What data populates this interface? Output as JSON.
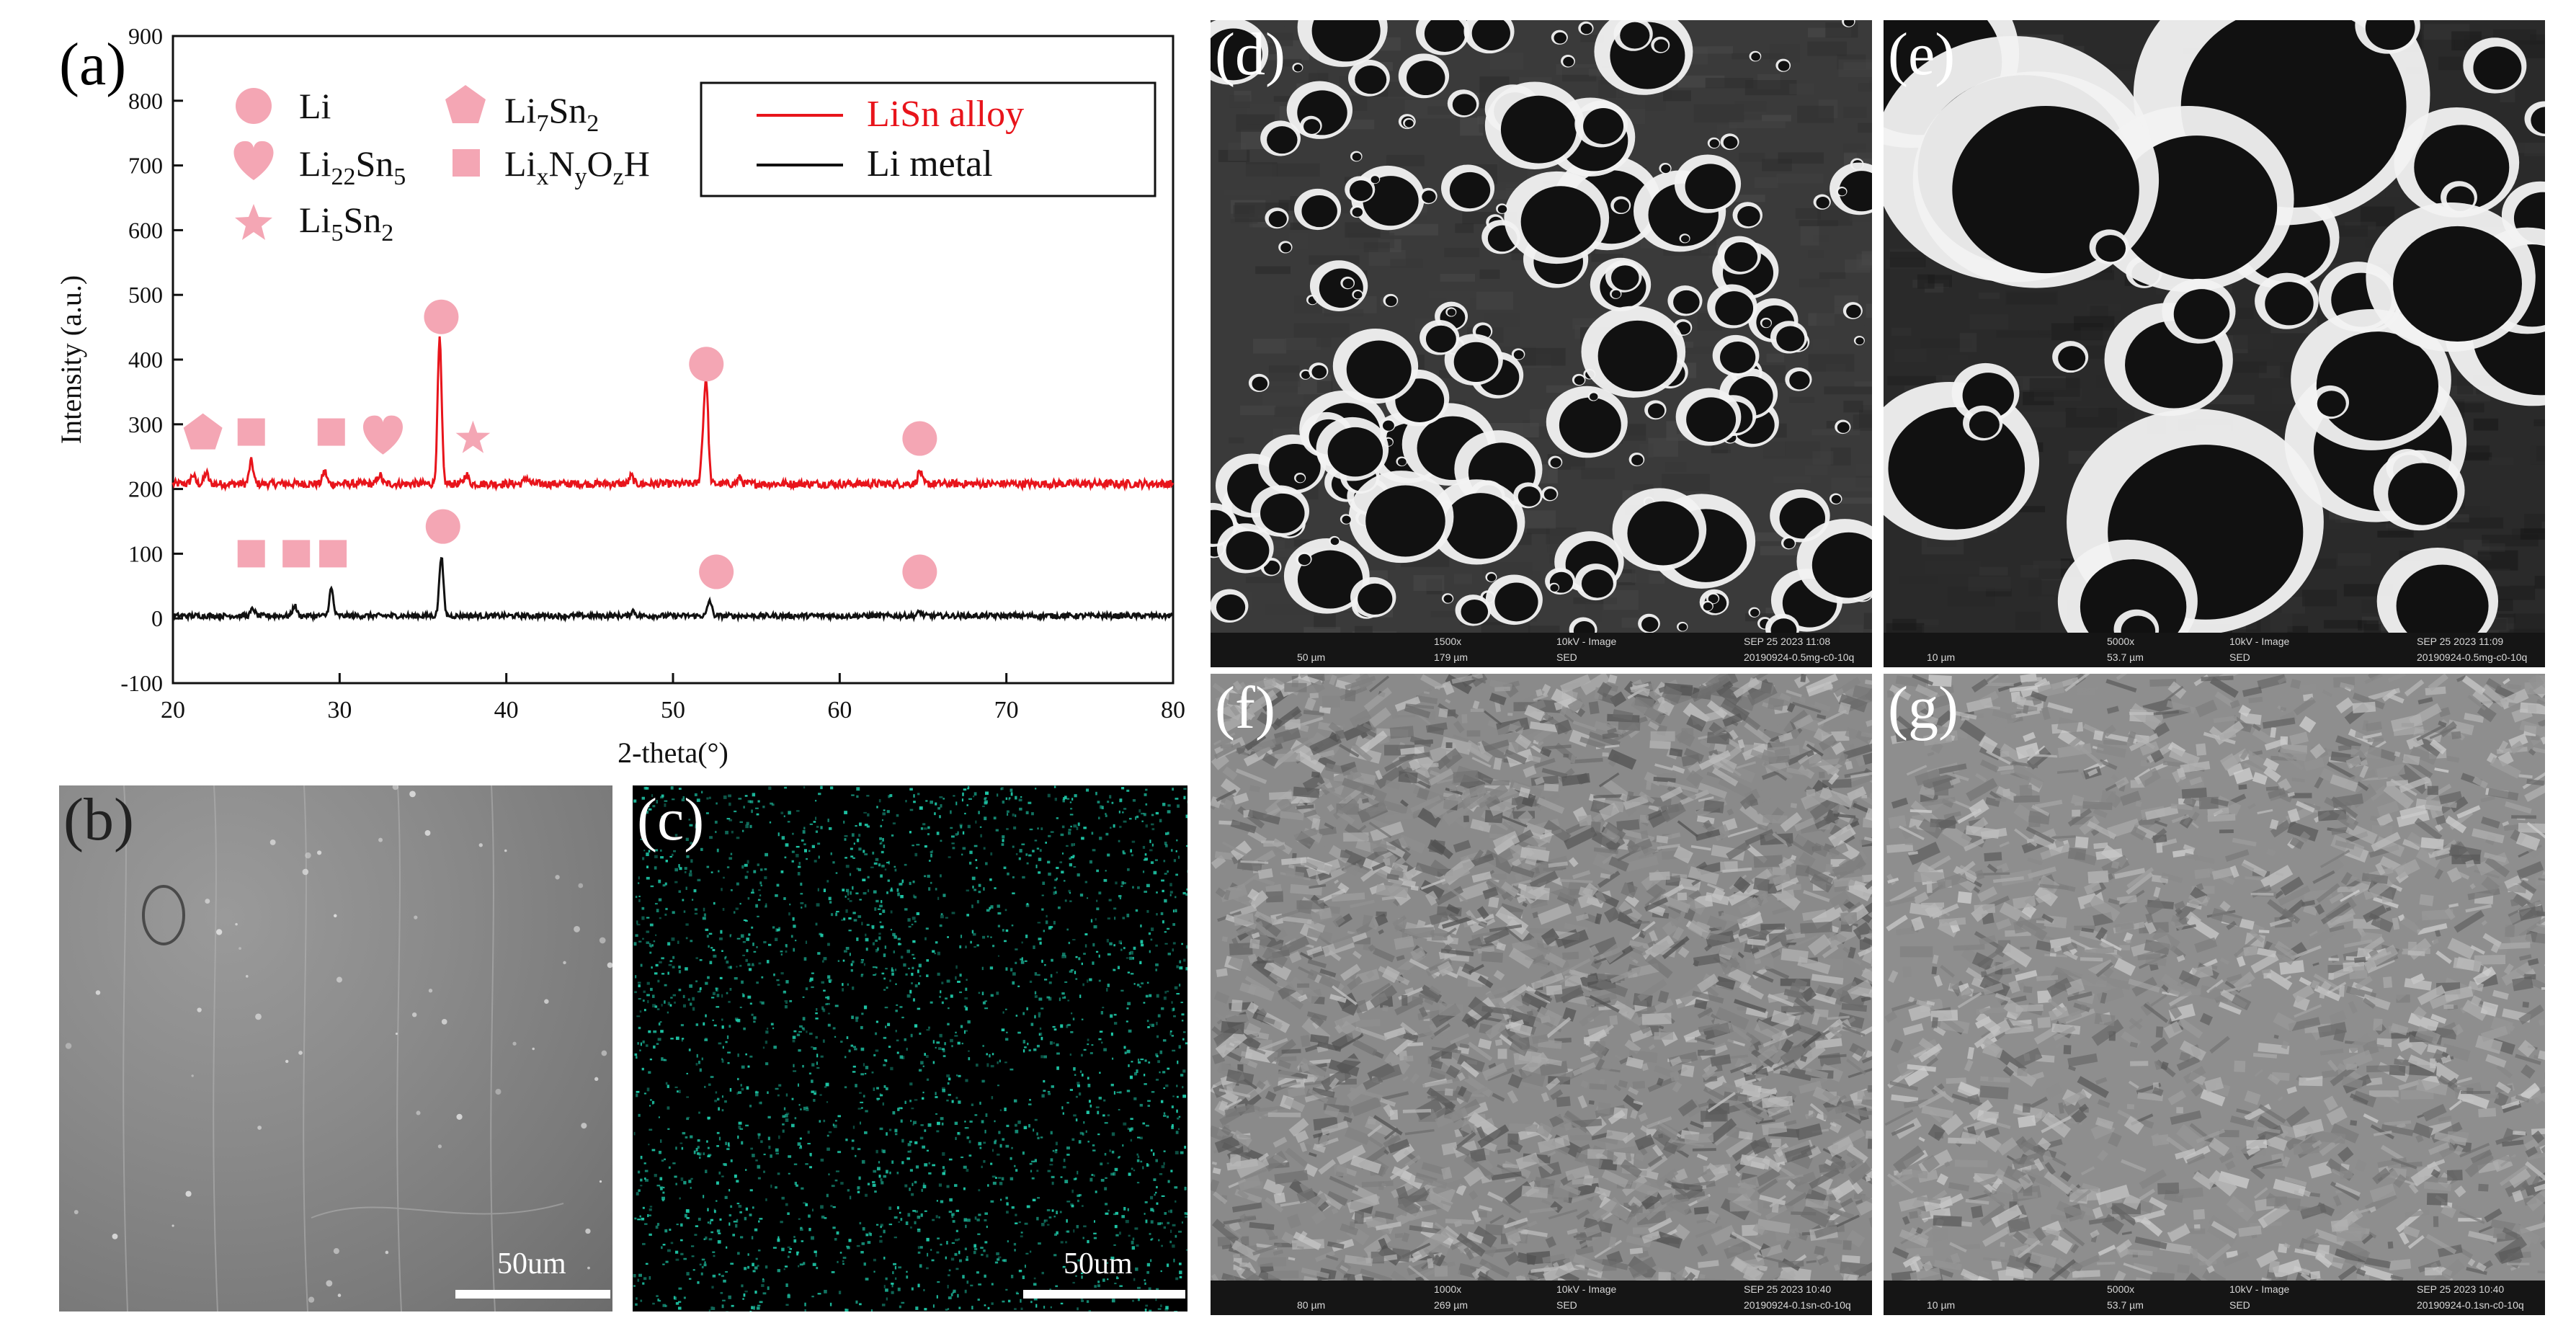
{
  "panels": {
    "a": "(a)",
    "b": "(b)",
    "c": "(c)",
    "d": "(d)",
    "e": "(e)",
    "f": "(f)",
    "g": "(g)"
  },
  "chart_data": {
    "type": "line",
    "xlabel": "2-theta(°)",
    "ylabel": "Intensity (a.u.)",
    "xlim": [
      20,
      80
    ],
    "ylim": [
      -100,
      900
    ],
    "xticks": [
      20,
      30,
      40,
      50,
      60,
      70,
      80
    ],
    "yticks": [
      -100,
      0,
      100,
      200,
      300,
      400,
      500,
      600,
      700,
      800,
      900
    ],
    "colors": {
      "lisn": "#e8141b",
      "li": "#111111",
      "marker": "#f4a6b4"
    },
    "series": [
      {
        "name": "LiSn alloy",
        "baseline": 208,
        "peaks": [
          [
            21.2,
            222
          ],
          [
            22.0,
            225
          ],
          [
            24.7,
            243
          ],
          [
            29.1,
            228
          ],
          [
            32.4,
            222
          ],
          [
            36.0,
            430
          ],
          [
            37.6,
            223
          ],
          [
            41.2,
            218
          ],
          [
            47.5,
            220
          ],
          [
            51.8,
            262
          ],
          [
            52.0,
            355
          ],
          [
            54.0,
            217
          ],
          [
            64.8,
            228
          ]
        ]
      },
      {
        "name": "Li metal",
        "baseline": 4,
        "peaks": [
          [
            24.8,
            15
          ],
          [
            27.3,
            20
          ],
          [
            29.5,
            46
          ],
          [
            36.1,
            97
          ],
          [
            47.6,
            12
          ],
          [
            52.2,
            28
          ],
          [
            64.8,
            10
          ]
        ]
      }
    ],
    "legend_top": {
      "li": "Li",
      "li22sn5_a": "Li",
      "li22sn5_sub1": "22",
      "li22sn5_b": "Sn",
      "li22sn5_sub2": "5",
      "li5sn2_a": "Li",
      "li5sn2_sub1": "5",
      "li5sn2_b": "Sn",
      "li5sn2_sub2": "2",
      "li7sn2_a": "Li",
      "li7sn2_sub1": "7",
      "li7sn2_b": "Sn",
      "li7sn2_sub2": "2",
      "linoh_a": "Li",
      "linoh_s1": "x",
      "linoh_b": "N",
      "linoh_s2": "y",
      "linoh_c": "O",
      "linoh_s3": "z",
      "linoh_d": "H"
    },
    "legend_lines": {
      "lisn": "LiSn alloy",
      "li": "Li metal"
    },
    "markers": [
      {
        "shape": "pentagon",
        "x": 21.8,
        "y": 288
      },
      {
        "shape": "square",
        "x": 24.7,
        "y": 288
      },
      {
        "shape": "square",
        "x": 29.5,
        "y": 288
      },
      {
        "shape": "heart",
        "x": 32.6,
        "y": 280
      },
      {
        "shape": "star",
        "x": 38.0,
        "y": 278
      },
      {
        "shape": "circle",
        "x": 36.1,
        "y": 466
      },
      {
        "shape": "circle",
        "x": 52.0,
        "y": 393
      },
      {
        "shape": "circle",
        "x": 64.8,
        "y": 278
      },
      {
        "shape": "square",
        "x": 24.7,
        "y": 100
      },
      {
        "shape": "square",
        "x": 27.4,
        "y": 100
      },
      {
        "shape": "square",
        "x": 29.6,
        "y": 100
      },
      {
        "shape": "circle",
        "x": 36.2,
        "y": 142
      },
      {
        "shape": "circle",
        "x": 52.6,
        "y": 72
      },
      {
        "shape": "circle",
        "x": 64.8,
        "y": 72
      }
    ]
  },
  "eds": {
    "b_scale": "50um",
    "c_scale": "50um",
    "dot_color": "#1ec8a8"
  },
  "sem": {
    "d": {
      "scale": "50 µm",
      "mag": "1500x",
      "hfw": "179 µm",
      "kv": "10kV - Image",
      "det": "SED",
      "date": "SEP 25 2023 11:08",
      "file": "20190924-0.5mg-c0-10q"
    },
    "e": {
      "scale": "10 µm",
      "mag": "5000x",
      "hfw": "53.7 µm",
      "kv": "10kV - Image",
      "det": "SED",
      "date": "SEP 25 2023 11:09",
      "file": "20190924-0.5mg-c0-10q"
    },
    "f": {
      "scale": "80 µm",
      "mag": "1000x",
      "hfw": "269 µm",
      "kv": "10kV - Image",
      "det": "SED",
      "date": "SEP 25 2023 10:40",
      "file": "20190924-0.1sn-c0-10q"
    },
    "g": {
      "scale": "10 µm",
      "mag": "5000x",
      "hfw": "53.7 µm",
      "kv": "10kV - Image",
      "det": "SED",
      "date": "SEP 25 2023 10:40",
      "file": "20190924-0.1sn-c0-10q"
    }
  }
}
